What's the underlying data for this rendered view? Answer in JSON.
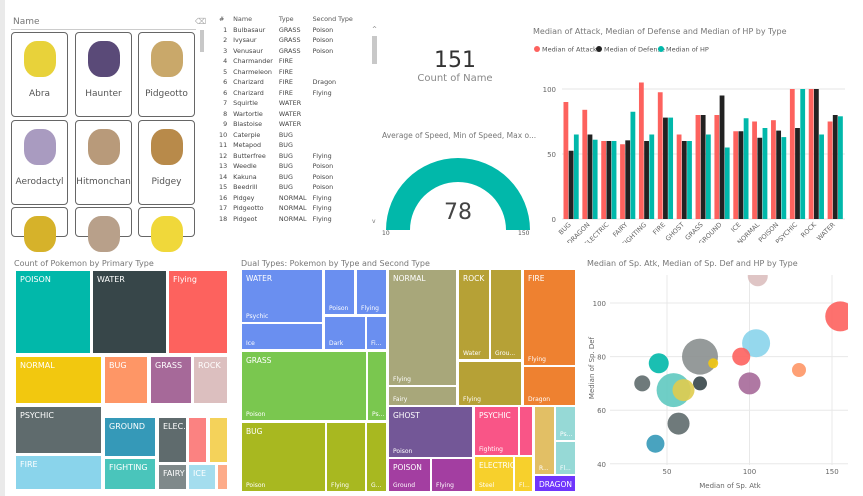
{
  "slicer": {
    "title": "Name",
    "cards": [
      {
        "name": "Abra",
        "color": "#e8d23a"
      },
      {
        "name": "Haunter",
        "color": "#5a4a78"
      },
      {
        "name": "Pidgeotto",
        "color": "#c9a86a"
      },
      {
        "name": "Aerodactyl",
        "color": "#a99bc0"
      },
      {
        "name": "Hitmonchan",
        "color": "#b89a7a"
      },
      {
        "name": "Pidgey",
        "color": "#b88a4a"
      },
      {
        "name": "",
        "color": "#d6b22a"
      },
      {
        "name": "",
        "color": "#b8a08a"
      },
      {
        "name": "",
        "color": "#f0d83a"
      }
    ]
  },
  "table": {
    "headers": [
      "#",
      "Name",
      "Type",
      "Second Type"
    ],
    "rows": [
      [
        "1",
        "Bulbasaur",
        "GRASS",
        "Poison"
      ],
      [
        "2",
        "Ivysaur",
        "GRASS",
        "Poison"
      ],
      [
        "3",
        "Venusaur",
        "GRASS",
        "Poison"
      ],
      [
        "4",
        "Charmander",
        "FIRE",
        ""
      ],
      [
        "5",
        "Charmeleon",
        "FIRE",
        ""
      ],
      [
        "6",
        "Charizard",
        "FIRE",
        "Dragon"
      ],
      [
        "6",
        "Charizard",
        "FIRE",
        "Flying"
      ],
      [
        "7",
        "Squirtle",
        "WATER",
        ""
      ],
      [
        "8",
        "Wartortle",
        "WATER",
        ""
      ],
      [
        "9",
        "Blastoise",
        "WATER",
        ""
      ],
      [
        "10",
        "Caterpie",
        "BUG",
        ""
      ],
      [
        "11",
        "Metapod",
        "BUG",
        ""
      ],
      [
        "12",
        "Butterfree",
        "BUG",
        "Flying"
      ],
      [
        "13",
        "Weedle",
        "BUG",
        "Poison"
      ],
      [
        "14",
        "Kakuna",
        "BUG",
        "Poison"
      ],
      [
        "15",
        "Beedrill",
        "BUG",
        "Poison"
      ],
      [
        "16",
        "Pidgey",
        "NORMAL",
        "Flying"
      ],
      [
        "17",
        "Pidgeotto",
        "NORMAL",
        "Flying"
      ],
      [
        "18",
        "Pidgeot",
        "NORMAL",
        "Flying"
      ]
    ]
  },
  "kpi": {
    "value": "151",
    "label": "Count of Name"
  },
  "gauge": {
    "title": "Average of Speed, Min of Speed, Max o...",
    "value": "78",
    "min": "10",
    "max": "150",
    "color": "#01b8aa"
  },
  "chart_data": [
    {
      "type": "bar",
      "title": "Median of Attack, Median of Defense and Median of HP by Type",
      "ylim": [
        0,
        110
      ],
      "yticks": [
        "0",
        "50",
        "100"
      ],
      "categories": [
        "BUG",
        "DRAGON",
        "ELECTRIC",
        "FAIRY",
        "FIGHTING",
        "FIRE",
        "GHOST",
        "GRASS",
        "GROUND",
        "ICE",
        "NORMAL",
        "POISON",
        "PSYCHIC",
        "ROCK",
        "WATER"
      ],
      "legend": "top-left",
      "series": [
        {
          "name": "Median of Attack",
          "color": "#fd625e",
          "values": [
            90,
            84,
            60,
            57.5,
            105,
            97.5,
            65,
            80,
            80,
            67.5,
            75,
            76,
            100,
            100,
            75
          ]
        },
        {
          "name": "Median of Defense",
          "color": "#222222",
          "values": [
            52.5,
            65,
            60,
            60.5,
            60,
            78,
            60,
            80,
            95,
            67.5,
            62.5,
            68,
            70,
            100,
            80
          ]
        },
        {
          "name": "Median of HP",
          "color": "#01b8aa",
          "values": [
            65,
            61,
            60,
            82.5,
            65,
            78,
            60,
            65,
            55,
            77.5,
            70,
            63,
            100,
            65,
            79
          ]
        }
      ]
    },
    {
      "type": "scatter",
      "title": "Median of Sp. Atk, Median of Sp. Def and HP by Type",
      "xlabel": "Median of Sp. Atk",
      "ylabel": "Median of Sp. Def",
      "xlim": [
        25,
        160
      ],
      "ylim": [
        40,
        110
      ],
      "xticks": [
        "50",
        "100",
        "150"
      ],
      "yticks": [
        "40",
        "60",
        "80",
        "100"
      ],
      "points": [
        {
          "x": 105,
          "y": 110,
          "size": 10,
          "color": "#dcbfbf"
        },
        {
          "x": 155,
          "y": 95,
          "size": 15,
          "color": "#fd625e"
        },
        {
          "x": 104,
          "y": 85,
          "size": 14,
          "color": "#8ad4eb"
        },
        {
          "x": 70,
          "y": 80,
          "size": 18,
          "color": "#8a8f8f"
        },
        {
          "x": 95,
          "y": 80,
          "size": 9,
          "color": "#fd625e"
        },
        {
          "x": 45,
          "y": 77.5,
          "size": 10,
          "color": "#01b8aa"
        },
        {
          "x": 130,
          "y": 75,
          "size": 7,
          "color": "#fe9666"
        },
        {
          "x": 100,
          "y": 70,
          "size": 11,
          "color": "#a66999"
        },
        {
          "x": 35,
          "y": 70,
          "size": 8,
          "color": "#5f6b6d"
        },
        {
          "x": 70,
          "y": 70,
          "size": 7,
          "color": "#374649"
        },
        {
          "x": 54,
          "y": 67.5,
          "size": 17,
          "color": "#5fc9c0"
        },
        {
          "x": 60,
          "y": 67.5,
          "size": 11,
          "color": "#e0cc4e"
        },
        {
          "x": 78,
          "y": 77.5,
          "size": 5,
          "color": "#f2c80f"
        },
        {
          "x": 57,
          "y": 55,
          "size": 11,
          "color": "#5f6b6d"
        },
        {
          "x": 43,
          "y": 47.5,
          "size": 9,
          "color": "#3599b8"
        }
      ]
    }
  ],
  "treemap1": {
    "title": "Count of Pokemon by Primary Type",
    "cells": [
      {
        "label": "POISON",
        "color": "#01b8aa"
      },
      {
        "label": "WATER",
        "color": "#374649"
      },
      {
        "label": "Flying",
        "color": "#fd625e"
      },
      {
        "label": "NORMAL",
        "color": "#f2c80f"
      },
      {
        "label": "BUG",
        "color": "#fe9666"
      },
      {
        "label": "GRASS",
        "color": "#a66999"
      },
      {
        "label": "ROCK",
        "color": "#dcbfbf"
      },
      {
        "label": "PSYCHIC",
        "color": "#5f6b6d"
      },
      {
        "label": "FIRE",
        "color": "#8ad4eb"
      },
      {
        "label": "GROUND",
        "color": "#3599b8"
      },
      {
        "label": "FIGHTING",
        "color": "#4ac5bb"
      },
      {
        "label": "ELEC...",
        "color": "#5f6b6d"
      },
      {
        "label": "",
        "color": "#fb8281"
      },
      {
        "label": "",
        "color": "#f4d25a"
      },
      {
        "label": "FAIRY",
        "color": "#7f898a"
      },
      {
        "label": "ICE",
        "color": "#a4ddee"
      },
      {
        "label": "",
        "color": "#fdab89"
      }
    ]
  },
  "treemap2": {
    "title": "Dual Types: Pokemon by Type and Second Type",
    "cells": [
      {
        "h": "WATER",
        "s": "Psychic",
        "color": "#6a8ff0"
      },
      {
        "h": "",
        "s": "Ice",
        "color": "#6a8ff0"
      },
      {
        "h": "",
        "s": "Poison",
        "color": "#6a8ff0"
      },
      {
        "h": "",
        "s": "Flying",
        "color": "#6a8ff0"
      },
      {
        "h": "",
        "s": "Dark",
        "color": "#6a8ff0"
      },
      {
        "h": "",
        "s": "Fi...",
        "color": "#6a8ff0"
      },
      {
        "h": "GRASS",
        "s": "Poison",
        "color": "#7ac74f"
      },
      {
        "h": "",
        "s": "Ps...",
        "color": "#7ac74f"
      },
      {
        "h": "BUG",
        "s": "Poison",
        "color": "#a8b820"
      },
      {
        "h": "",
        "s": "Flying",
        "color": "#a8b820"
      },
      {
        "h": "",
        "s": "G...",
        "color": "#a8b820"
      },
      {
        "h": "NORMAL",
        "s": "Flying",
        "color": "#a8a77a"
      },
      {
        "h": "",
        "s": "Fairy",
        "color": "#a8a77a"
      },
      {
        "h": "ROCK",
        "s": "Water",
        "color": "#b6a136"
      },
      {
        "h": "",
        "s": "Grou...",
        "color": "#b6a136"
      },
      {
        "h": "",
        "s": "Flying",
        "color": "#b6a136"
      },
      {
        "h": "FIRE",
        "s": "Flying",
        "color": "#ee8130"
      },
      {
        "h": "",
        "s": "Dragon",
        "color": "#ee8130"
      },
      {
        "h": "GHOST",
        "s": "Poison",
        "color": "#735797"
      },
      {
        "h": "POISON",
        "s": "Ground",
        "color": "#a33ea1"
      },
      {
        "h": "",
        "s": "Flying",
        "color": "#a33ea1"
      },
      {
        "h": "PSYCHIC",
        "s": "Fighting",
        "color": "#f95587"
      },
      {
        "h": "",
        "s": "",
        "color": "#f95587"
      },
      {
        "h": "ELECTRIC",
        "s": "Steel",
        "color": "#f7d02c"
      },
      {
        "h": "",
        "s": "Fl...",
        "color": "#f7d02c"
      },
      {
        "h": "",
        "s": "R...",
        "color": "#e2bf65"
      },
      {
        "h": "",
        "s": "Ps...",
        "color": "#96d9d6"
      },
      {
        "h": "",
        "s": "Fl...",
        "color": "#96d9d6"
      },
      {
        "h": "DRAGON",
        "s": "",
        "color": "#6f35fc"
      }
    ]
  }
}
